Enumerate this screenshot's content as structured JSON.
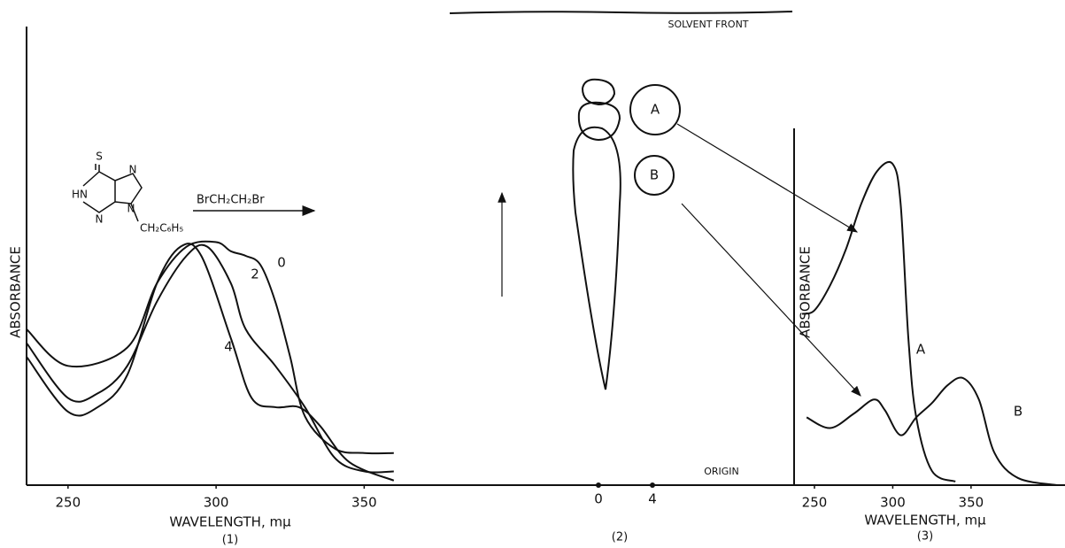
{
  "chart_data": [
    {
      "type": "line",
      "ylabel": "ABSORBANCE",
      "xlabel": "WAVELENGTH, mμ",
      "caption": "(1)",
      "xlim": [
        236,
        375
      ],
      "ylim": [
        0,
        1
      ],
      "xticks": [
        250,
        300,
        350
      ],
      "color": "#111111",
      "series": [
        {
          "name": "0",
          "x": [
            236,
            250,
            270,
            280,
            290,
            300,
            305,
            310,
            315,
            320,
            325,
            330,
            340,
            350,
            360
          ],
          "values": [
            0.34,
            0.26,
            0.3,
            0.44,
            0.52,
            0.53,
            0.51,
            0.5,
            0.48,
            0.4,
            0.28,
            0.15,
            0.08,
            0.07,
            0.07
          ]
        },
        {
          "name": "2",
          "x": [
            236,
            250,
            260,
            270,
            280,
            290,
            297,
            305,
            310,
            320,
            330,
            340,
            350,
            360
          ],
          "values": [
            0.31,
            0.19,
            0.2,
            0.26,
            0.4,
            0.5,
            0.52,
            0.44,
            0.34,
            0.26,
            0.17,
            0.06,
            0.03,
            0.03
          ]
        },
        {
          "name": "4",
          "x": [
            236,
            250,
            260,
            270,
            280,
            288,
            295,
            305,
            312,
            320,
            328,
            335,
            345,
            360
          ],
          "values": [
            0.28,
            0.16,
            0.17,
            0.24,
            0.44,
            0.52,
            0.5,
            0.32,
            0.19,
            0.17,
            0.17,
            0.13,
            0.05,
            0.01
          ]
        }
      ]
    },
    {
      "type": "line",
      "ylabel": "ABSORBANCE",
      "xlabel": "WAVELENGTH, mμ",
      "caption": "(3)",
      "xlim": [
        237,
        410
      ],
      "ylim": [
        0,
        1
      ],
      "xticks": [
        250,
        300,
        350
      ],
      "color": "#111111",
      "series": [
        {
          "name": "A",
          "x": [
            242,
            250,
            260,
            270,
            280,
            290,
            300,
            305,
            310,
            315,
            325,
            340
          ],
          "values": [
            0.48,
            0.49,
            0.56,
            0.66,
            0.79,
            0.88,
            0.9,
            0.79,
            0.41,
            0.19,
            0.04,
            0.01
          ]
        },
        {
          "name": "B",
          "x": [
            245,
            260,
            275,
            288,
            295,
            305,
            315,
            325,
            335,
            345,
            355,
            365,
            380,
            405
          ],
          "values": [
            0.19,
            0.16,
            0.2,
            0.24,
            0.21,
            0.14,
            0.19,
            0.23,
            0.28,
            0.3,
            0.24,
            0.09,
            0.02,
            0
          ]
        }
      ]
    }
  ],
  "structure": {
    "atoms": [
      "S",
      "HN",
      "N",
      "N",
      "N",
      "CH₂C₆H₅"
    ],
    "reagent": "BrCH₂CH₂Br"
  },
  "tlc": {
    "solvent_front": "SOLVENT FRONT",
    "origin": "ORIGIN",
    "lanes": [
      "0",
      "4"
    ],
    "spots": [
      "A",
      "B"
    ],
    "caption": "(2)"
  }
}
